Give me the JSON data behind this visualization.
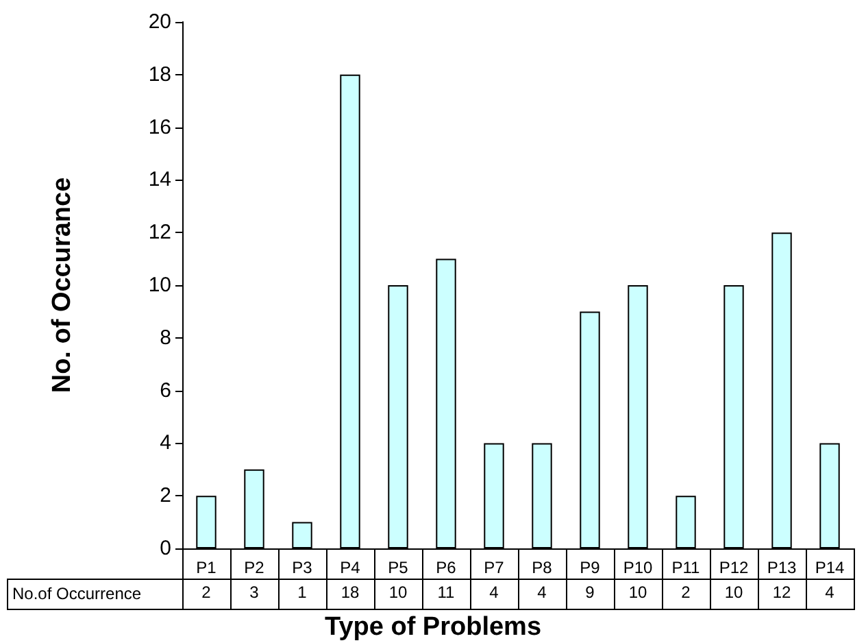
{
  "chart_data": {
    "type": "bar",
    "xlabel": "Type of Problems",
    "ylabel": "No. of Occurance",
    "categories": [
      "P1",
      "P2",
      "P3",
      "P4",
      "P5",
      "P6",
      "P7",
      "P8",
      "P9",
      "P10",
      "P11",
      "P12",
      "P13",
      "P14"
    ],
    "values": [
      2,
      3,
      1,
      18,
      10,
      11,
      4,
      4,
      9,
      10,
      2,
      10,
      12,
      4
    ],
    "color": "#ccffff",
    "ylim": [
      0,
      20
    ],
    "yticks": [
      0,
      2,
      4,
      6,
      8,
      10,
      12,
      14,
      16,
      18,
      20
    ],
    "grid": false,
    "data_labels": true,
    "annotations": [
      "No.of Occurrence"
    ]
  }
}
